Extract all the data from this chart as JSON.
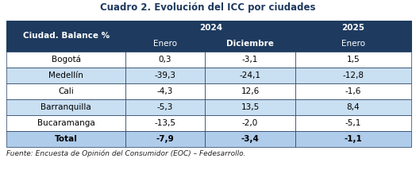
{
  "title": "Cuadro 2. Evolución del ICC por ciudades",
  "col_header_bg": "#1e3a5f",
  "col_header_text": "#ffffff",
  "year_header_2024": "2024",
  "year_header_2025": "2025",
  "sub_headers": [
    "Enero",
    "Diciembre",
    "Enero"
  ],
  "col0_header": "Ciudad. Balance %",
  "rows": [
    {
      "city": "Bogotá",
      "v1": "0,3",
      "v2": "-3,1",
      "v3": "1,5",
      "shaded": false,
      "bold": false
    },
    {
      "city": "Medellín",
      "v1": "-39,3",
      "v2": "-24,1",
      "v3": "-12,8",
      "shaded": true,
      "bold": false
    },
    {
      "city": "Cali",
      "v1": "-4,3",
      "v2": "12,6",
      "v3": "-1,6",
      "shaded": false,
      "bold": false
    },
    {
      "city": "Barranquilla",
      "v1": "-5,3",
      "v2": "13,5",
      "v3": "8,4",
      "shaded": true,
      "bold": false
    },
    {
      "city": "Bucaramanga",
      "v1": "-13,5",
      "v2": "-2,0",
      "v3": "-5,1",
      "shaded": false,
      "bold": false
    },
    {
      "city": "Total",
      "v1": "-7,9",
      "v2": "-3,4",
      "v3": "-1,1",
      "shaded": true,
      "bold": true
    }
  ],
  "footer": "Fuente: Encuesta de Opinión del Consumidor (EOC) – Fedesarrollo.",
  "shaded_bg": "#c9dff2",
  "unshaded_bg": "#ffffff",
  "border_color": "#1e3a5f",
  "title_color": "#1e3a5f",
  "title_fontsize": 8.5,
  "header_fontsize": 7.5,
  "cell_fontsize": 7.5,
  "footer_fontsize": 6.5,
  "total_bg": "#b0cceb"
}
